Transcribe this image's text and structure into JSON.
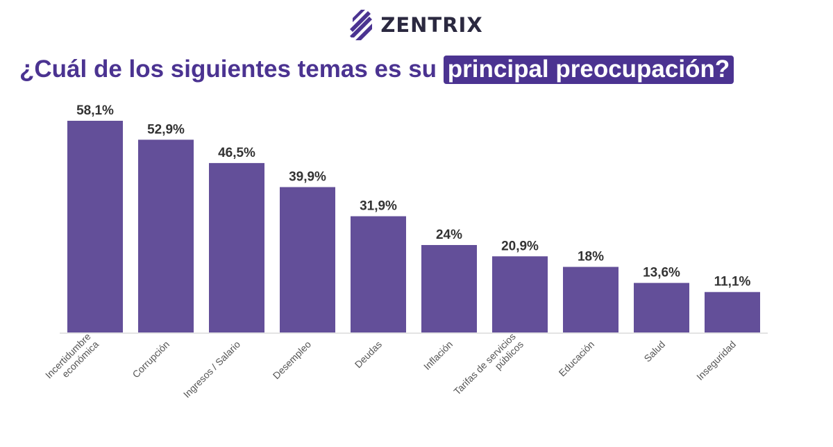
{
  "brand": {
    "name": "ZENTRIX",
    "logo_icon": "zentrix-stripes-logo",
    "logo_color": "#4b3391"
  },
  "title": {
    "prefix": "¿Cuál de los siguientes temas es su",
    "highlight": "principal preocupación?"
  },
  "chart_data": {
    "type": "bar",
    "categories": [
      [
        "Incertidumbre",
        "económica"
      ],
      [
        "Corrupción"
      ],
      [
        "Ingresos / Salario"
      ],
      [
        "Desempleo"
      ],
      [
        "Deudas"
      ],
      [
        "Inflación"
      ],
      [
        "Tarifas de servicios",
        "públicos"
      ],
      [
        "Educación"
      ],
      [
        "Salud"
      ],
      [
        "Inseguridad"
      ]
    ],
    "values": [
      58.1,
      52.9,
      46.5,
      39.9,
      31.9,
      24,
      20.9,
      18,
      13.6,
      11.1
    ],
    "value_labels": [
      "58,1%",
      "52,9%",
      "46,5%",
      "39,9%",
      "31,9%",
      "24%",
      "20,9%",
      "18%",
      "13,6%",
      "11,1%"
    ],
    "ylim": [
      0,
      58.1
    ],
    "bar_color": "#634f99",
    "baseline_color": "#e4e4e4",
    "grid": false,
    "legend": "none"
  }
}
